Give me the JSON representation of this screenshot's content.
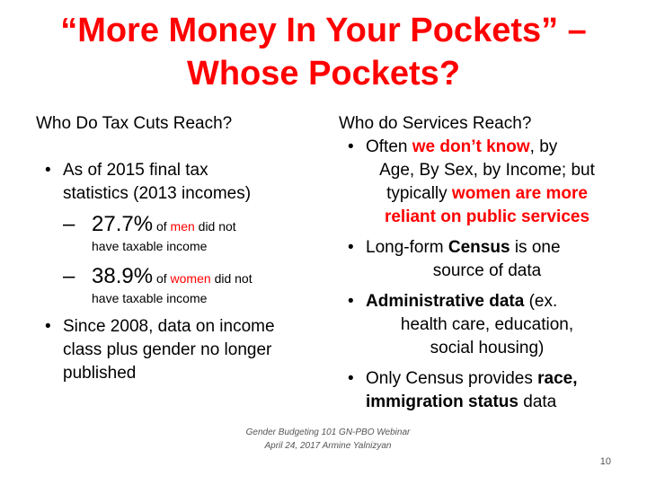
{
  "title": {
    "line1": "“More Money In Your Pockets” –",
    "line2": "Whose Pockets?"
  },
  "left": {
    "heading": "Who Do Tax Cuts Reach?",
    "bullet1_line1": "As of 2015 final tax",
    "bullet1_line2": "statistics (2013 incomes)",
    "sub1": {
      "dash": "–",
      "value": "27.7%",
      "pre": "of",
      "group": "men",
      "post": "did not",
      "line2": "have taxable income"
    },
    "sub2": {
      "dash": "–",
      "value": "38.9%",
      "pre": "of",
      "group": "women",
      "post": "did not",
      "line2": "have taxable income"
    },
    "bullet2_line1": "Since 2008, data on income",
    "bullet2_line2": "class plus gender no longer",
    "bullet2_line3": "published"
  },
  "right": {
    "heading": "Who do Services Reach?",
    "b1": {
      "pre": "Often",
      "red1": "we don’t know",
      "post1": ", by",
      "l2": "Age, By Sex, by Income; but",
      "l3_pre": "typically",
      "red2": "women are more",
      "l4": "reliant on public services"
    },
    "b2": {
      "pre": "Long-form",
      "bold": "Census",
      "post": "is one",
      "l2": "source of data"
    },
    "b3": {
      "bold": "Administrative data",
      "post": "(ex.",
      "l2": "health care, education,",
      "l3": "social housing)"
    },
    "b4": {
      "pre": "Only Census provides",
      "bold1": "race,",
      "bold2": "immigration status",
      "post": "data"
    }
  },
  "footer": {
    "line1": "Gender Budgeting 101 GN-PBO Webinar",
    "line2": "April 24, 2017   Armine Yalnizyan"
  },
  "page_number": "10",
  "colors": {
    "accent": "#ff0000",
    "text": "#000000"
  }
}
